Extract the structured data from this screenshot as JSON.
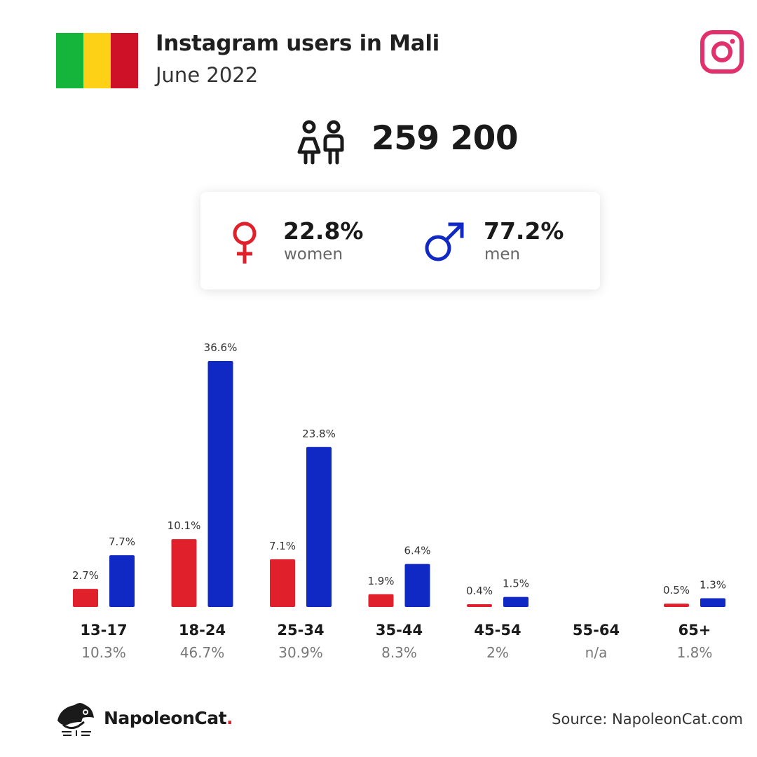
{
  "header": {
    "title": "Instagram users in Mali",
    "subtitle": "June 2022",
    "flag_colors": [
      "#14b53a",
      "#fcd116",
      "#ce1126"
    ],
    "platform_icon": "instagram-icon",
    "platform_color": "#e1306c"
  },
  "total": {
    "value": "259 200",
    "icon": "people-icon"
  },
  "gender": {
    "women": {
      "pct": "22.8%",
      "label": "women",
      "icon": "female-symbol-icon",
      "color": "#e0202b"
    },
    "men": {
      "pct": "77.2%",
      "label": "men",
      "icon": "male-symbol-icon",
      "color": "#1029c4"
    }
  },
  "chart_data": {
    "type": "bar",
    "categories": [
      "13-17",
      "18-24",
      "25-34",
      "35-44",
      "45-54",
      "55-64",
      "65+"
    ],
    "category_totals": [
      "10.3%",
      "46.7%",
      "30.9%",
      "8.3%",
      "2%",
      "n/a",
      "1.8%"
    ],
    "series": [
      {
        "name": "women",
        "color": "#e0202b",
        "values": [
          2.7,
          10.1,
          7.1,
          1.9,
          0.4,
          null,
          0.5
        ],
        "labels": [
          "2.7%",
          "10.1%",
          "7.1%",
          "1.9%",
          "0.4%",
          "",
          "0.5%"
        ]
      },
      {
        "name": "men",
        "color": "#1029c4",
        "values": [
          7.7,
          36.6,
          23.8,
          6.4,
          1.5,
          null,
          1.3
        ],
        "labels": [
          "7.7%",
          "36.6%",
          "23.8%",
          "6.4%",
          "1.5%",
          "",
          "1.3%"
        ]
      }
    ],
    "ylim": [
      0,
      36.6
    ],
    "grid": false
  },
  "footer": {
    "brand": "NapoleonCat",
    "brand_dot": ".",
    "source": "Source: NapoleonCat.com"
  }
}
